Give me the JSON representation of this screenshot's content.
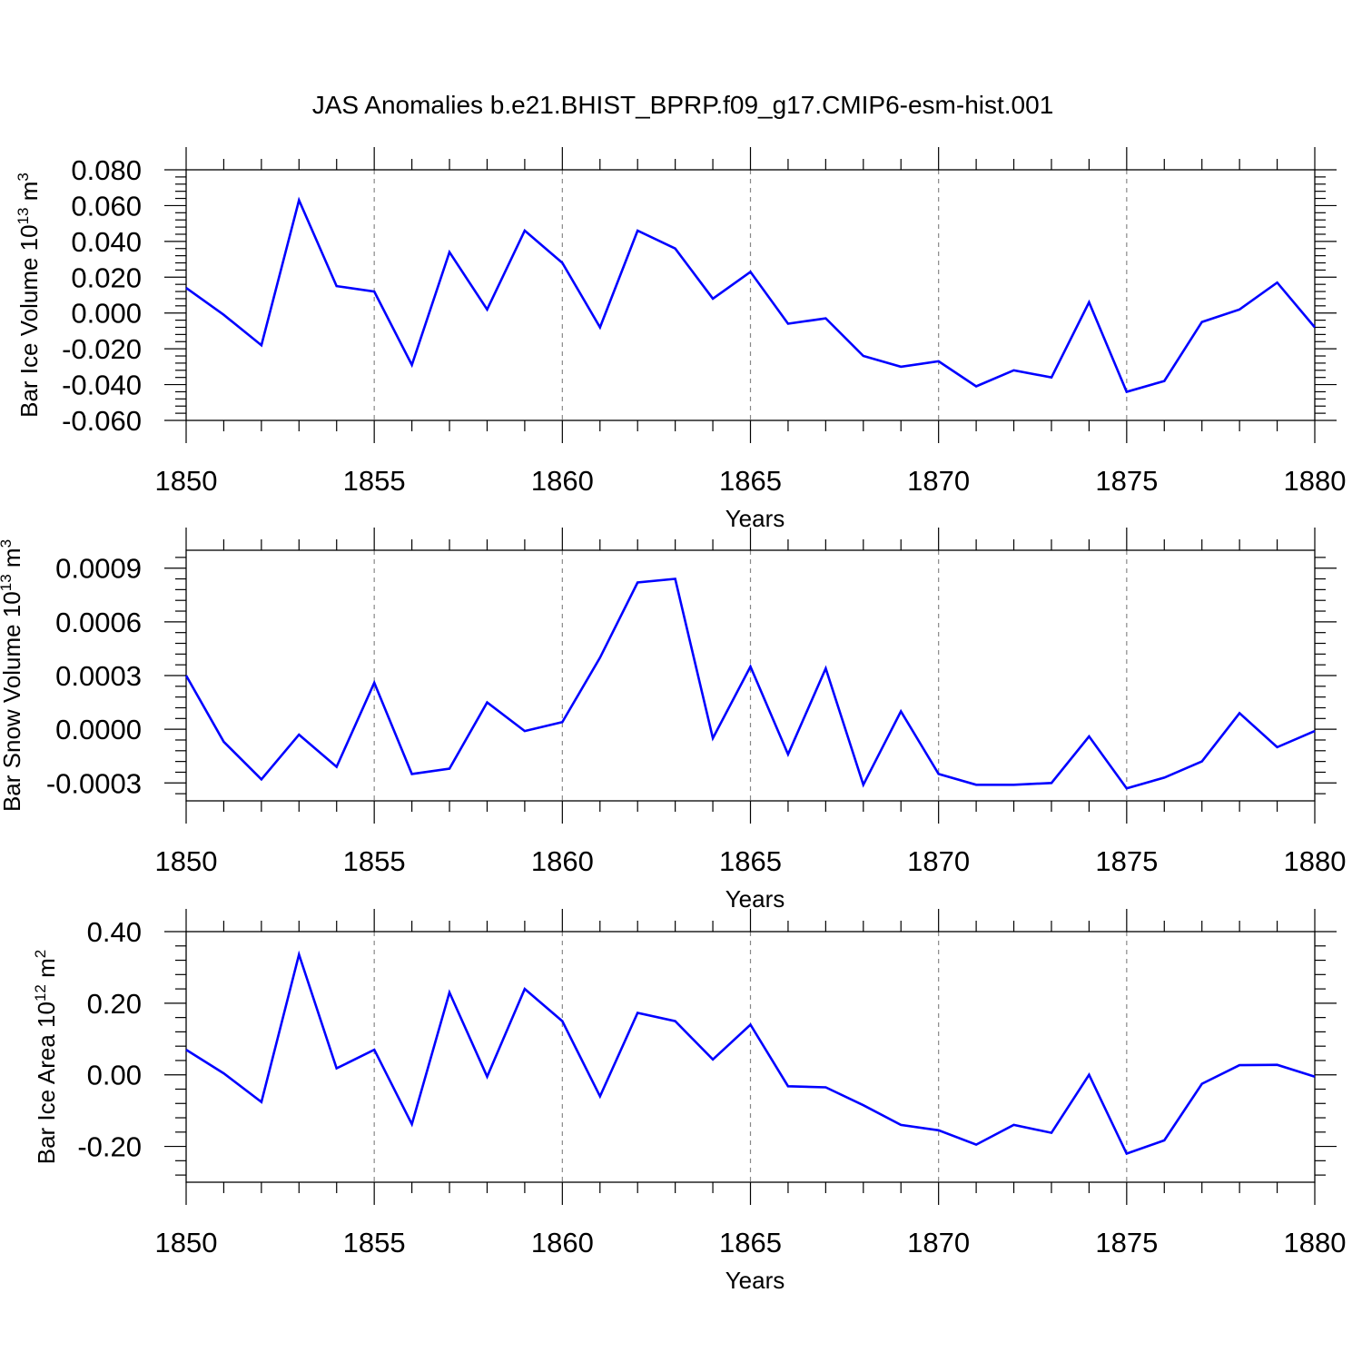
{
  "figure": {
    "title": "JAS Anomalies b.e21.BHIST_BPRP.f09_g17.CMIP6-esm-hist.001",
    "line_color": "#0000ff",
    "grid_color": "#888888",
    "frame_color": "#000000"
  },
  "chart_data": [
    {
      "type": "line",
      "id": "ice-volume",
      "ylabel": {
        "text": "Bar Ice Volume 10",
        "sup1": "13",
        "mid": " m",
        "sup2": "3"
      },
      "xlabel": "Years",
      "xlim": [
        1850,
        1880
      ],
      "ylim": [
        -0.06,
        0.08
      ],
      "x_ticks": [
        1850,
        1855,
        1860,
        1865,
        1870,
        1875,
        1880
      ],
      "x_tick_labels": [
        "1850",
        "1855",
        "1860",
        "1865",
        "1870",
        "1875",
        "1880"
      ],
      "y_ticks": [
        0.08,
        0.06,
        0.04,
        0.02,
        0.0,
        -0.02,
        -0.04,
        -0.06
      ],
      "y_tick_labels": [
        "0.080",
        "0.060",
        "0.040",
        "0.020",
        "0.000",
        "-0.020",
        "-0.040",
        "-0.060"
      ],
      "vertical_grid": [
        1855,
        1860,
        1865,
        1870,
        1875
      ],
      "x": [
        1850,
        1851,
        1852,
        1853,
        1854,
        1855,
        1856,
        1857,
        1858,
        1859,
        1860,
        1861,
        1862,
        1863,
        1864,
        1865,
        1866,
        1867,
        1868,
        1869,
        1870,
        1871,
        1872,
        1873,
        1874,
        1875,
        1876,
        1877,
        1878,
        1879,
        1880
      ],
      "series": [
        {
          "values": [
            0.014,
            -0.001,
            -0.018,
            0.063,
            0.015,
            0.012,
            -0.029,
            0.034,
            0.002,
            0.046,
            0.028,
            -0.008,
            0.046,
            0.036,
            0.008,
            0.023,
            -0.006,
            -0.003,
            -0.024,
            -0.03,
            -0.027,
            -0.041,
            -0.032,
            -0.036,
            0.006,
            -0.044,
            -0.038,
            -0.005,
            0.002,
            0.017,
            -0.008
          ]
        }
      ]
    },
    {
      "type": "line",
      "id": "snow-volume",
      "ylabel": {
        "text": "Bar Snow Volume 10",
        "sup1": "13",
        "mid": " m",
        "sup2": "3"
      },
      "xlabel": "Years",
      "xlim": [
        1850,
        1880
      ],
      "ylim": [
        -0.0004,
        0.001
      ],
      "x_ticks": [
        1850,
        1855,
        1860,
        1865,
        1870,
        1875,
        1880
      ],
      "x_tick_labels": [
        "1850",
        "1855",
        "1860",
        "1865",
        "1870",
        "1875",
        "1880"
      ],
      "y_ticks": [
        0.0009,
        0.0006,
        0.0003,
        0.0,
        -0.0003
      ],
      "y_tick_labels": [
        "0.0009",
        "0.0006",
        "0.0003",
        "0.0000",
        "-0.0003"
      ],
      "vertical_grid": [
        1855,
        1860,
        1865,
        1870,
        1875
      ],
      "x": [
        1850,
        1851,
        1852,
        1853,
        1854,
        1855,
        1856,
        1857,
        1858,
        1859,
        1860,
        1861,
        1862,
        1863,
        1864,
        1865,
        1866,
        1867,
        1868,
        1869,
        1870,
        1871,
        1872,
        1873,
        1874,
        1875,
        1876,
        1877,
        1878,
        1879,
        1880
      ],
      "series": [
        {
          "values": [
            0.0003,
            -7e-05,
            -0.00028,
            -3e-05,
            -0.00021,
            0.00026,
            -0.00025,
            -0.00022,
            0.00015,
            -1e-05,
            4e-05,
            0.0004,
            0.00082,
            0.00084,
            -5e-05,
            0.00035,
            -0.00014,
            0.00034,
            -0.00031,
            0.0001,
            -0.00025,
            -0.00031,
            -0.00031,
            -0.0003,
            -4e-05,
            -0.00033,
            -0.00027,
            -0.00018,
            9e-05,
            -0.0001,
            -1e-05
          ]
        }
      ]
    },
    {
      "type": "line",
      "id": "ice-area",
      "ylabel": {
        "text": "Bar Ice Area 10",
        "sup1": "12",
        "mid": " m",
        "sup2": "2"
      },
      "xlabel": "Years",
      "xlim": [
        1850,
        1880
      ],
      "ylim": [
        -0.3,
        0.4
      ],
      "x_ticks": [
        1850,
        1855,
        1860,
        1865,
        1870,
        1875,
        1880
      ],
      "x_tick_labels": [
        "1850",
        "1855",
        "1860",
        "1865",
        "1870",
        "1875",
        "1880"
      ],
      "y_ticks": [
        0.4,
        0.2,
        0.0,
        -0.2
      ],
      "y_tick_labels": [
        "0.40",
        "0.20",
        "0.00",
        "-0.20"
      ],
      "vertical_grid": [
        1855,
        1860,
        1865,
        1870,
        1875
      ],
      "x": [
        1850,
        1851,
        1852,
        1853,
        1854,
        1855,
        1856,
        1857,
        1858,
        1859,
        1860,
        1861,
        1862,
        1863,
        1864,
        1865,
        1866,
        1867,
        1868,
        1869,
        1870,
        1871,
        1872,
        1873,
        1874,
        1875,
        1876,
        1877,
        1878,
        1879,
        1880
      ],
      "series": [
        {
          "values": [
            0.07,
            0.004,
            -0.076,
            0.336,
            0.018,
            0.07,
            -0.138,
            0.23,
            -0.005,
            0.24,
            0.15,
            -0.06,
            0.173,
            0.15,
            0.043,
            0.14,
            -0.032,
            -0.035,
            -0.085,
            -0.14,
            -0.155,
            -0.195,
            -0.14,
            -0.162,
            0.0,
            -0.22,
            -0.183,
            -0.025,
            0.027,
            0.028,
            -0.005
          ]
        }
      ]
    }
  ]
}
